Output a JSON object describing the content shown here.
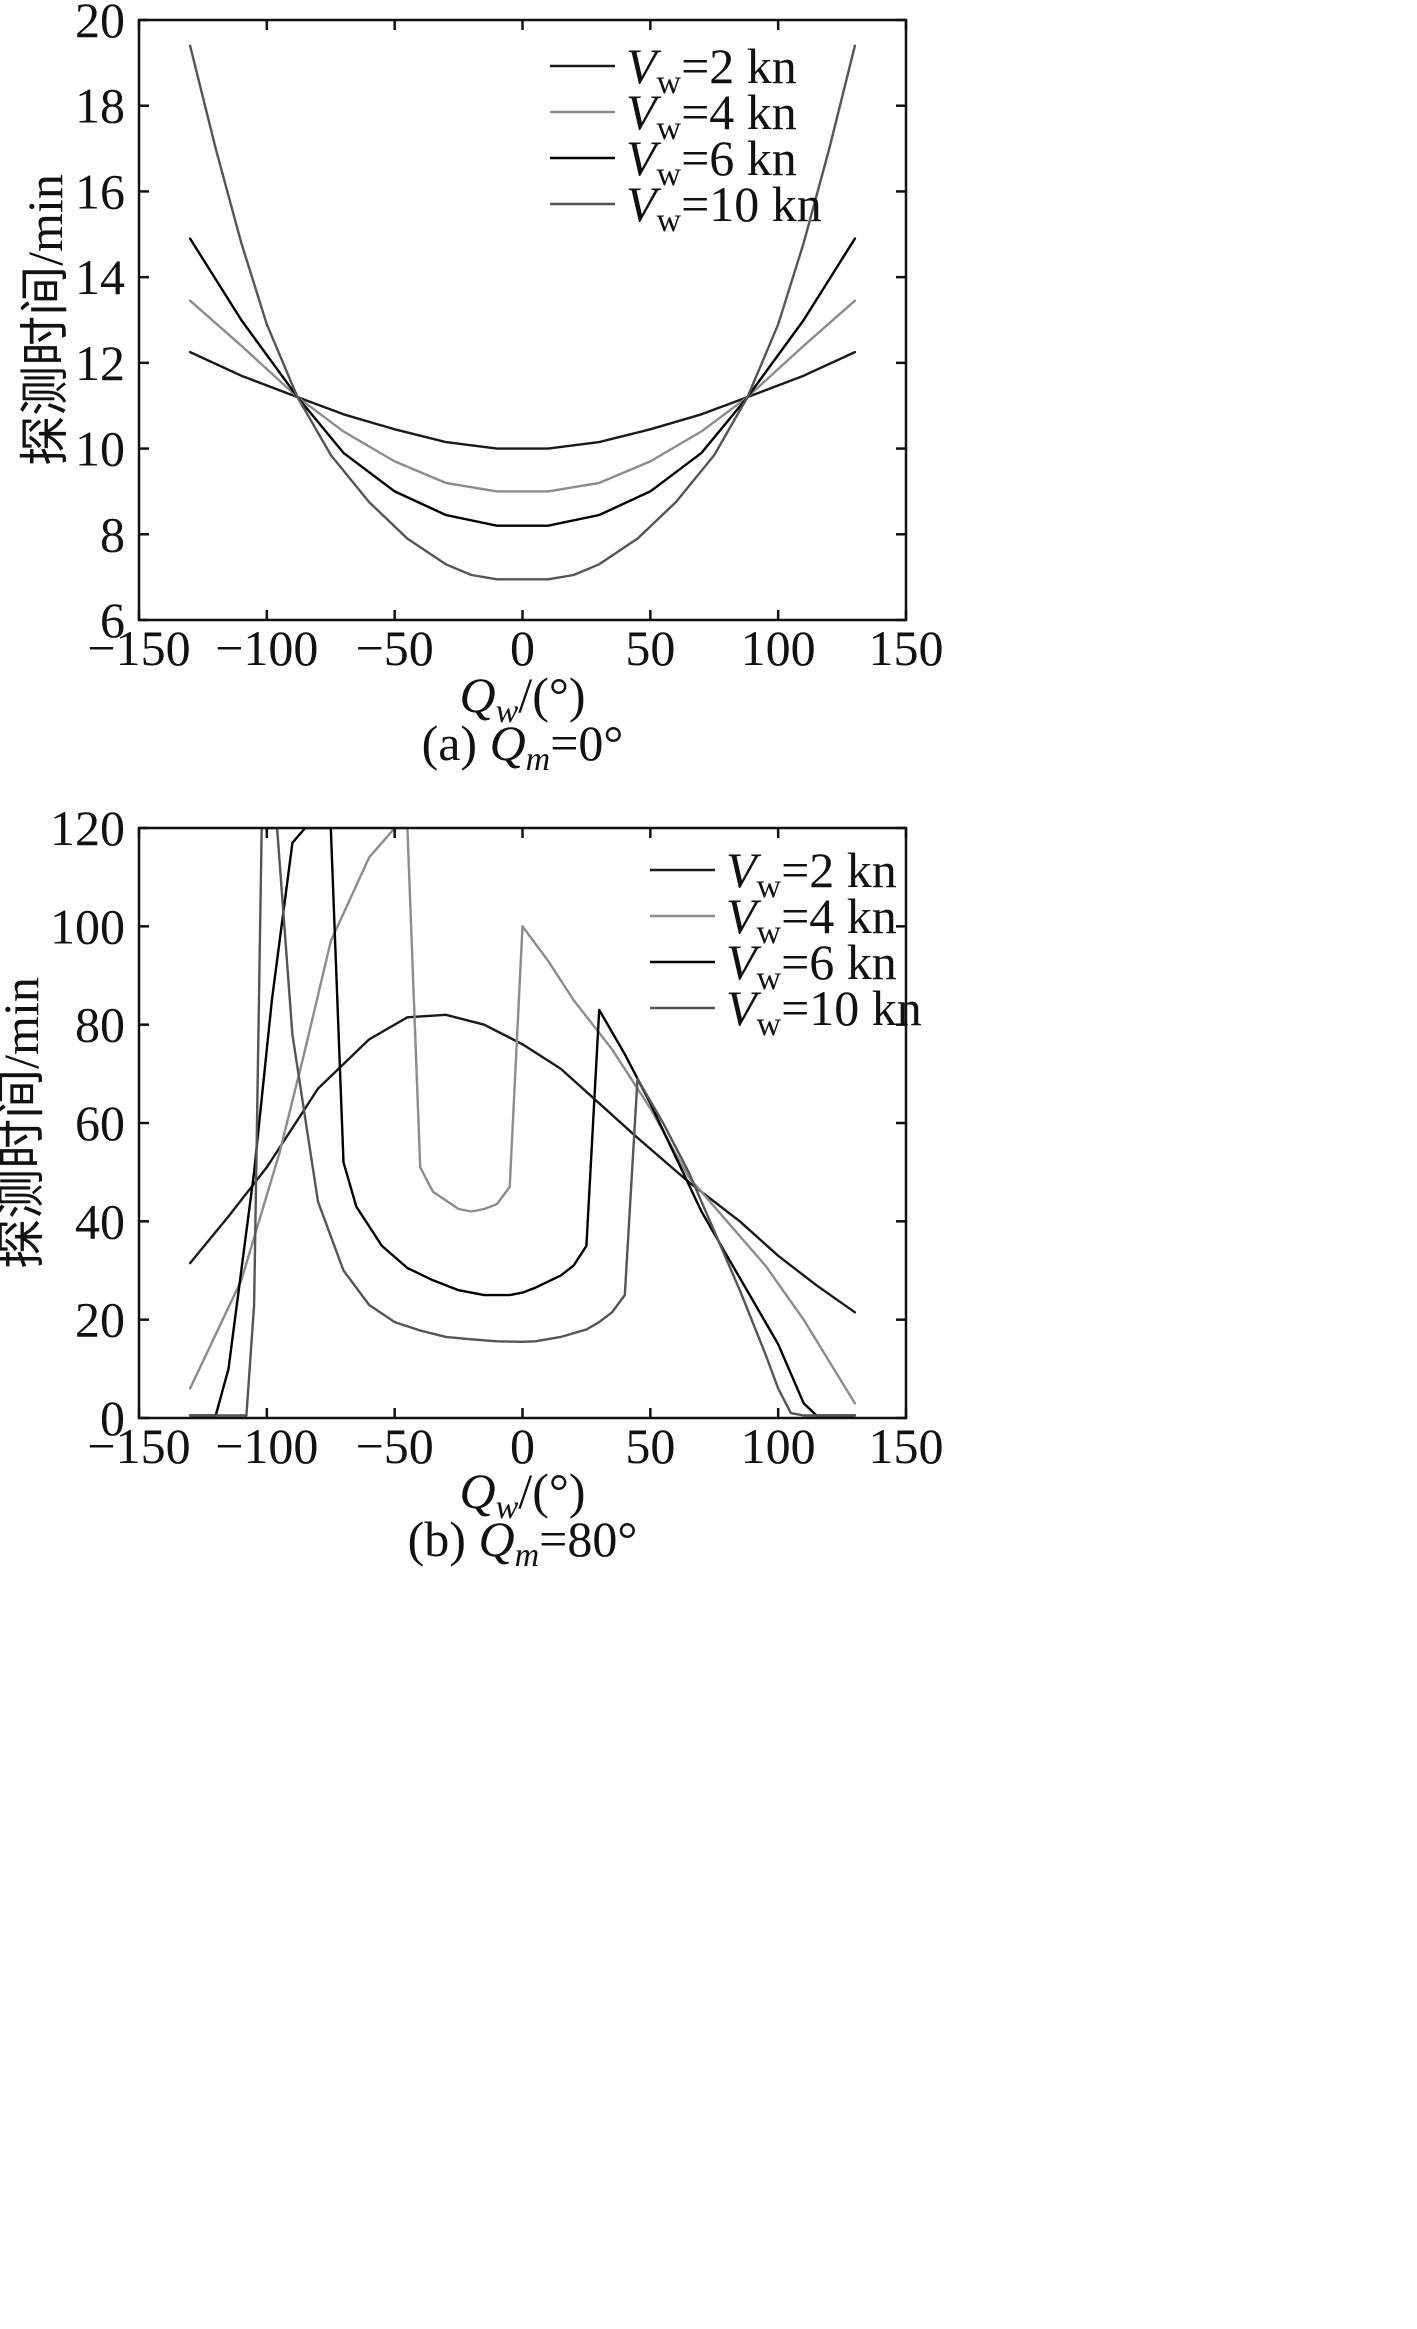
{
  "chart_data": [
    {
      "type": "line",
      "panel": "a",
      "xlabel": "Q_w/(°)",
      "ylabel": "探测时间/min",
      "caption": "(a) Q_m=0°",
      "xlim": [
        -150,
        150
      ],
      "ylim": [
        6,
        20
      ],
      "xticks": [
        -150,
        -100,
        -50,
        0,
        50,
        100,
        150
      ],
      "xtick_labels": [
        "−150",
        "−100",
        "−50",
        "0",
        "50",
        "100",
        "150"
      ],
      "yticks": [
        6,
        8,
        10,
        12,
        14,
        16,
        18,
        20
      ],
      "ytick_labels": [
        "6",
        "8",
        "10",
        "12",
        "14",
        "16",
        "18",
        "20"
      ],
      "grid": false,
      "legend_position": "top-right",
      "series": [
        {
          "name": "V_w=2 kn",
          "color": "#1a1a1a",
          "x": [
            -130,
            -110,
            -88,
            -70,
            -50,
            -30,
            -10,
            0,
            10,
            30,
            50,
            70,
            88,
            110,
            130
          ],
          "y": [
            12.25,
            11.7,
            11.2,
            10.8,
            10.45,
            10.15,
            10.0,
            10.0,
            10.0,
            10.15,
            10.45,
            10.8,
            11.2,
            11.7,
            12.25
          ]
        },
        {
          "name": "V_w=4 kn",
          "color": "#8c8c8c",
          "x": [
            -130,
            -110,
            -88,
            -70,
            -50,
            -30,
            -10,
            0,
            10,
            30,
            50,
            70,
            88,
            110,
            130
          ],
          "y": [
            13.45,
            12.4,
            11.2,
            10.4,
            9.7,
            9.2,
            9.0,
            9.0,
            9.0,
            9.2,
            9.7,
            10.4,
            11.2,
            12.4,
            13.45
          ]
        },
        {
          "name": "V_w=6 kn",
          "color": "#000000",
          "x": [
            -130,
            -110,
            -88,
            -70,
            -50,
            -30,
            -10,
            0,
            10,
            30,
            50,
            70,
            88,
            110,
            130
          ],
          "y": [
            14.9,
            13.0,
            11.2,
            9.9,
            9.0,
            8.45,
            8.2,
            8.2,
            8.2,
            8.45,
            9.0,
            9.9,
            11.2,
            13.0,
            14.9
          ]
        },
        {
          "name": "V_w=10 kn",
          "color": "#555555",
          "x": [
            -130,
            -120,
            -110,
            -100,
            -88,
            -75,
            -60,
            -45,
            -30,
            -20,
            -10,
            0,
            10,
            20,
            30,
            45,
            60,
            75,
            88,
            100,
            110,
            120,
            130
          ],
          "y": [
            19.4,
            17.0,
            14.8,
            12.9,
            11.2,
            9.85,
            8.75,
            7.9,
            7.3,
            7.05,
            6.95,
            6.95,
            6.95,
            7.05,
            7.3,
            7.9,
            8.75,
            9.85,
            11.2,
            12.9,
            14.8,
            17.0,
            19.4
          ]
        }
      ]
    },
    {
      "type": "line",
      "panel": "b",
      "xlabel": "Q_w/(°)",
      "ylabel": "探测时间/min",
      "caption": "(b) Q_m=80°",
      "xlim": [
        -150,
        150
      ],
      "ylim": [
        0,
        120
      ],
      "xticks": [
        -150,
        -100,
        -50,
        0,
        50,
        100,
        150
      ],
      "xtick_labels": [
        "−150",
        "−100",
        "−50",
        "0",
        "50",
        "100",
        "150"
      ],
      "yticks": [
        0,
        20,
        40,
        60,
        80,
        100,
        120
      ],
      "ytick_labels": [
        "0",
        "20",
        "40",
        "60",
        "80",
        "100",
        "120"
      ],
      "grid": false,
      "legend_position": "top-right",
      "series": [
        {
          "name": "V_w=2 kn",
          "color": "#1a1a1a",
          "x": [
            -130,
            -115,
            -100,
            -80,
            -60,
            -45,
            -30,
            -15,
            0,
            15,
            30,
            45,
            65,
            85,
            100,
            115,
            130
          ],
          "y": [
            31.5,
            41,
            51,
            67,
            77,
            81.5,
            82,
            80,
            76,
            71,
            64,
            57,
            48,
            40,
            33,
            27,
            21.5
          ]
        },
        {
          "name": "V_w=4 kn",
          "color": "#8c8c8c",
          "x": [
            -130,
            -110,
            -95,
            -85,
            -75,
            -60,
            -50,
            -45,
            -40,
            -35,
            -25,
            -20,
            -15,
            -10,
            -5,
            0,
            10,
            20,
            35,
            50,
            65,
            80,
            95,
            110,
            130
          ],
          "y": [
            6,
            28,
            54,
            75,
            97,
            114,
            120,
            120,
            51,
            46,
            42.5,
            42,
            42.5,
            43.5,
            47,
            100,
            93,
            85,
            75,
            63,
            49,
            40,
            31,
            20,
            3
          ]
        },
        {
          "name": "V_w=6 kn",
          "color": "#000000",
          "x": [
            -130,
            -120,
            -115,
            -105,
            -98,
            -90,
            -85,
            -75,
            -70,
            -65,
            -55,
            -45,
            -35,
            -25,
            -15,
            -5,
            0,
            5,
            15,
            20,
            25,
            30,
            40,
            50,
            60,
            70,
            80,
            90,
            100,
            110,
            115,
            120,
            130
          ],
          "y": [
            0.5,
            0.5,
            10,
            50,
            85,
            117,
            120,
            120,
            52,
            43,
            35,
            30.5,
            28,
            26,
            25,
            25,
            25.5,
            26.5,
            29,
            31,
            35,
            83,
            74,
            64,
            53,
            42,
            33,
            24,
            15,
            3,
            0.5,
            0.5,
            0.5
          ]
        },
        {
          "name": "V_w=10 kn",
          "color": "#555555",
          "x": [
            -130,
            -108,
            -105,
            -102,
            -99,
            -96,
            -90,
            -80,
            -70,
            -60,
            -50,
            -40,
            -30,
            -20,
            -10,
            0,
            5,
            15,
            25,
            30,
            35,
            40,
            45,
            55,
            65,
            75,
            85,
            95,
            100,
            105,
            110,
            120,
            130
          ],
          "y": [
            0.5,
            0.5,
            23,
            120,
            120,
            120,
            78,
            44,
            30,
            23,
            19.5,
            17.8,
            16.5,
            16,
            15.6,
            15.5,
            15.6,
            16.5,
            18,
            19.5,
            21.5,
            25,
            69,
            60,
            50,
            38,
            26,
            13,
            6,
            1,
            0.5,
            0.5,
            0.5
          ]
        }
      ]
    }
  ]
}
